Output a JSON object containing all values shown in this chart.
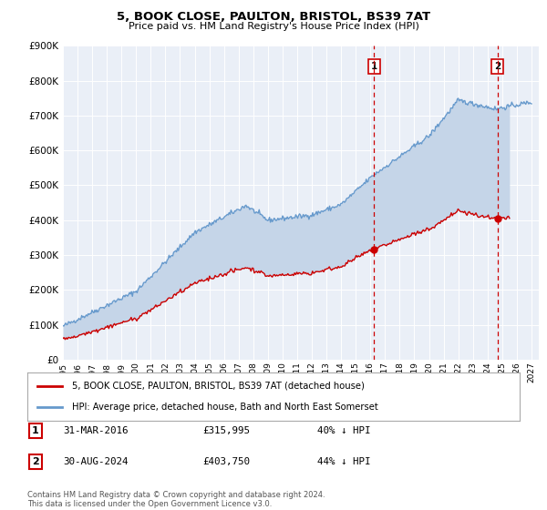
{
  "title": "5, BOOK CLOSE, PAULTON, BRISTOL, BS39 7AT",
  "subtitle": "Price paid vs. HM Land Registry's House Price Index (HPI)",
  "legend_label_red": "5, BOOK CLOSE, PAULTON, BRISTOL, BS39 7AT (detached house)",
  "legend_label_blue": "HPI: Average price, detached house, Bath and North East Somerset",
  "footnote": "Contains HM Land Registry data © Crown copyright and database right 2024.\nThis data is licensed under the Open Government Licence v3.0.",
  "point1_label": "1",
  "point1_date": "31-MAR-2016",
  "point1_value": "£315,995",
  "point1_hpi": "40% ↓ HPI",
  "point1_x": 2016.25,
  "point1_y": 315995,
  "point2_label": "2",
  "point2_date": "30-AUG-2024",
  "point2_value": "£403,750",
  "point2_hpi": "44% ↓ HPI",
  "point2_x": 2024.67,
  "point2_y": 403750,
  "ylim": [
    0,
    900000
  ],
  "xlim_start": 1995.0,
  "xlim_end": 2027.5,
  "color_red": "#cc0000",
  "color_blue": "#6699cc",
  "color_fill": "#c5d5e8",
  "background_color": "#ffffff",
  "plot_bg_color": "#eaeff7"
}
